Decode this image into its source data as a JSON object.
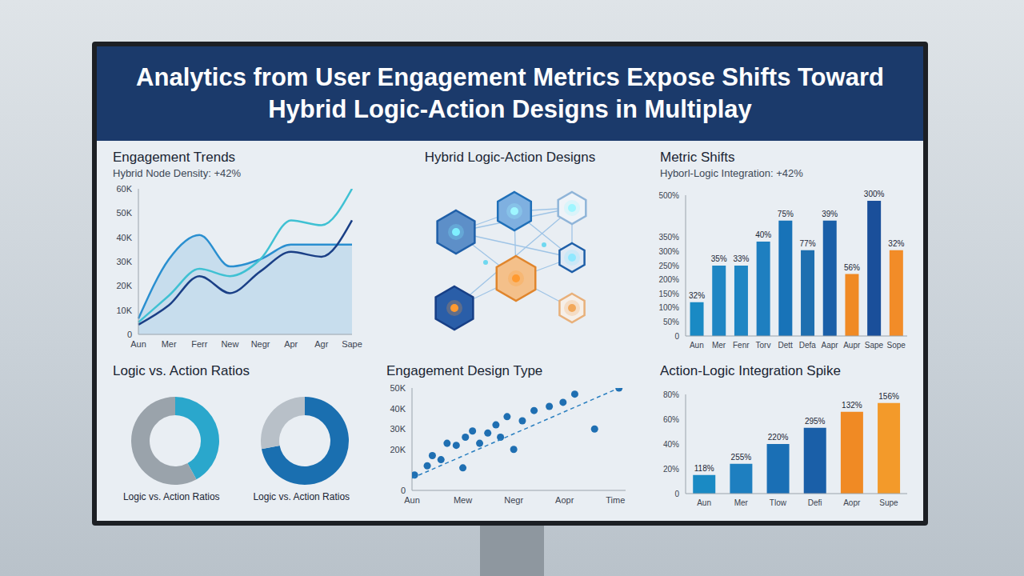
{
  "title": "Analytics from User Engagement Metrics Expose Shifts Toward Hybrid Logic-Action Designs in Multiplay",
  "chart_data": [
    {
      "type": "line",
      "title": "Engagement Trends",
      "subtitle": "Hybrid Node Density: +42%",
      "categories": [
        "Aun",
        "Mer",
        "Ferr",
        "New",
        "Negr",
        "Apr",
        "Agr",
        "Sape"
      ],
      "series": [
        {
          "type": "area",
          "color": "#2a8fd0",
          "values": [
            6500,
            31000,
            41000,
            28000,
            31000,
            37000,
            37000,
            37000
          ]
        },
        {
          "type": "line",
          "color": "#3fc1d3",
          "values": [
            5000,
            16000,
            27000,
            24000,
            31000,
            47000,
            45000,
            60000
          ]
        },
        {
          "type": "line",
          "color": "#1a3f86",
          "values": [
            4000,
            12000,
            24000,
            17000,
            26000,
            34000,
            32000,
            47000
          ]
        }
      ],
      "ylim": [
        0,
        60000
      ],
      "yticks": [
        0,
        {
          "value": 10000,
          "label": "10K"
        },
        {
          "value": 20000,
          "label": "20K"
        },
        {
          "value": 30000,
          "label": "30K"
        },
        {
          "value": 40000,
          "label": "40K"
        },
        {
          "value": 50000,
          "label": "50K"
        },
        {
          "value": 60000,
          "label": "60K"
        }
      ]
    },
    {
      "type": "network",
      "title": "Hybrid Logic-Action Designs"
    },
    {
      "type": "bar",
      "title": "Metric Shifts",
      "subtitle": "Hyborl-Logic Integration: +42%",
      "categories": [
        "Aun",
        "Mer",
        "Fenr",
        "Torv",
        "Dett",
        "Defa",
        "Aapr",
        "Aupr",
        "Sape",
        "Sope"
      ],
      "values": [
        120,
        250,
        250,
        335,
        410,
        305,
        410,
        220,
        480,
        305
      ],
      "annotations": [
        "32%",
        "35%",
        "33%",
        "40%",
        "75%",
        "77%",
        "39%",
        "56%",
        "300%",
        "32%"
      ],
      "colors": [
        "#1a8ac4",
        "#1f86c4",
        "#1f86c4",
        "#1e7fc0",
        "#1873b8",
        "#1e6fb0",
        "#1a5fa8",
        "#f08a24",
        "#1a4f9a",
        "#f28c28"
      ],
      "ylim": [
        0,
        500
      ],
      "yticks": [
        0,
        {
          "value": 50,
          "label": "50%"
        },
        {
          "value": 100,
          "label": "100%"
        },
        {
          "value": 150,
          "label": "150%"
        },
        {
          "value": 200,
          "label": "200%"
        },
        {
          "value": 250,
          "label": "250%"
        },
        {
          "value": 300,
          "label": "300%"
        },
        {
          "value": 350,
          "label": "350%"
        },
        {
          "value": 500,
          "label": "500%"
        }
      ]
    },
    {
      "type": "pie",
      "title": "Logic vs. Action Ratios",
      "series": [
        {
          "name": "Logic vs. Action Ratios",
          "values": [
            42,
            58
          ],
          "colors": [
            "#2aa7cc",
            "#9aa3ab"
          ]
        },
        {
          "name": "Logic vs. Action Ratios",
          "values": [
            72,
            28
          ],
          "colors": [
            "#1a6fb0",
            "#b8c0c8"
          ]
        }
      ]
    },
    {
      "type": "scatter",
      "title": "Engagement Design Type",
      "series": [
        {
          "type": "scatter",
          "marker": "circle",
          "color": "#1f6fb2",
          "x": [
            0.05,
            0.3,
            0.4,
            0.57,
            0.69,
            0.87,
            1.0,
            1.05,
            1.19,
            1.33,
            1.49,
            1.65,
            1.74,
            1.87,
            2.0,
            2.17,
            2.4,
            2.7,
            2.97,
            3.2,
            3.59,
            4.07
          ],
          "values": [
            7500,
            12000,
            17000,
            15000,
            23000,
            22000,
            11000,
            26000,
            29000,
            23000,
            28000,
            32000,
            26000,
            36000,
            20000,
            34000,
            39000,
            41000,
            43000,
            47000,
            30000,
            50000
          ]
        },
        {
          "type": "line",
          "line_style": "dashed",
          "color": "#2a7fc0",
          "x": [
            0,
            4.07
          ],
          "values": [
            6000,
            50000
          ]
        }
      ],
      "xlim": [
        0,
        4.2
      ],
      "xticks": [
        {
          "value": 0,
          "label": "Aun"
        },
        {
          "value": 1,
          "label": "Mew"
        },
        {
          "value": 2,
          "label": "Negr"
        },
        {
          "value": 3,
          "label": "Aopr"
        },
        {
          "value": 4,
          "label": "Time"
        }
      ],
      "ylim": [
        0,
        50000
      ],
      "yticks": [
        0,
        {
          "value": 20000,
          "label": "20K"
        },
        {
          "value": 30000,
          "label": "30K"
        },
        {
          "value": 40000,
          "label": "40K"
        },
        {
          "value": 50000,
          "label": "50K"
        }
      ]
    },
    {
      "type": "bar",
      "title": "Action-Logic Integration Spike",
      "categories": [
        "Aun",
        "Mer",
        "Tlow",
        "Defi",
        "Aopr",
        "Supe"
      ],
      "values": [
        15,
        24,
        40,
        53,
        66,
        73
      ],
      "annotations": [
        "118%",
        "255%",
        "220%",
        "295%",
        "132%",
        "156%"
      ],
      "colors": [
        "#1a8ac4",
        "#1e7fc0",
        "#1a6fb5",
        "#1a5fa8",
        "#f08a24",
        "#f39a2a"
      ],
      "ylim": [
        0,
        80
      ],
      "yticks": [
        0,
        {
          "value": 20,
          "label": "20%"
        },
        {
          "value": 40,
          "label": "40%"
        },
        {
          "value": 60,
          "label": "60%"
        },
        {
          "value": 80,
          "label": "80%"
        }
      ]
    }
  ]
}
